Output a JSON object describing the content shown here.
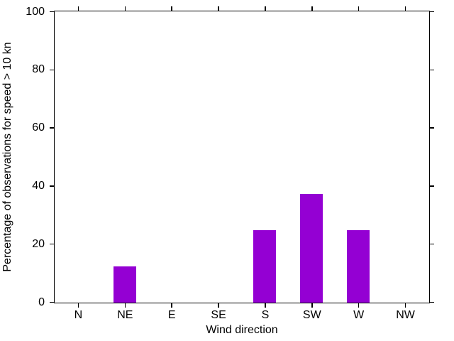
{
  "chart_data": {
    "type": "bar",
    "title": "",
    "xlabel": "Wind direction",
    "ylabel": "Percentage of observations for speed > 10 kn",
    "categories": [
      "N",
      "NE",
      "E",
      "SE",
      "S",
      "SW",
      "W",
      "NW"
    ],
    "values": [
      0,
      12.5,
      0,
      0,
      25,
      37.5,
      25,
      0
    ],
    "ylim": [
      0,
      100
    ],
    "yticks": [
      0,
      20,
      40,
      60,
      80,
      100
    ],
    "grid": false,
    "legend": "none",
    "tick_direction": "out",
    "bar_color": "#9400d3",
    "axis_color": "#000000",
    "text_color": "#000000",
    "background_color": "#ffffff"
  }
}
